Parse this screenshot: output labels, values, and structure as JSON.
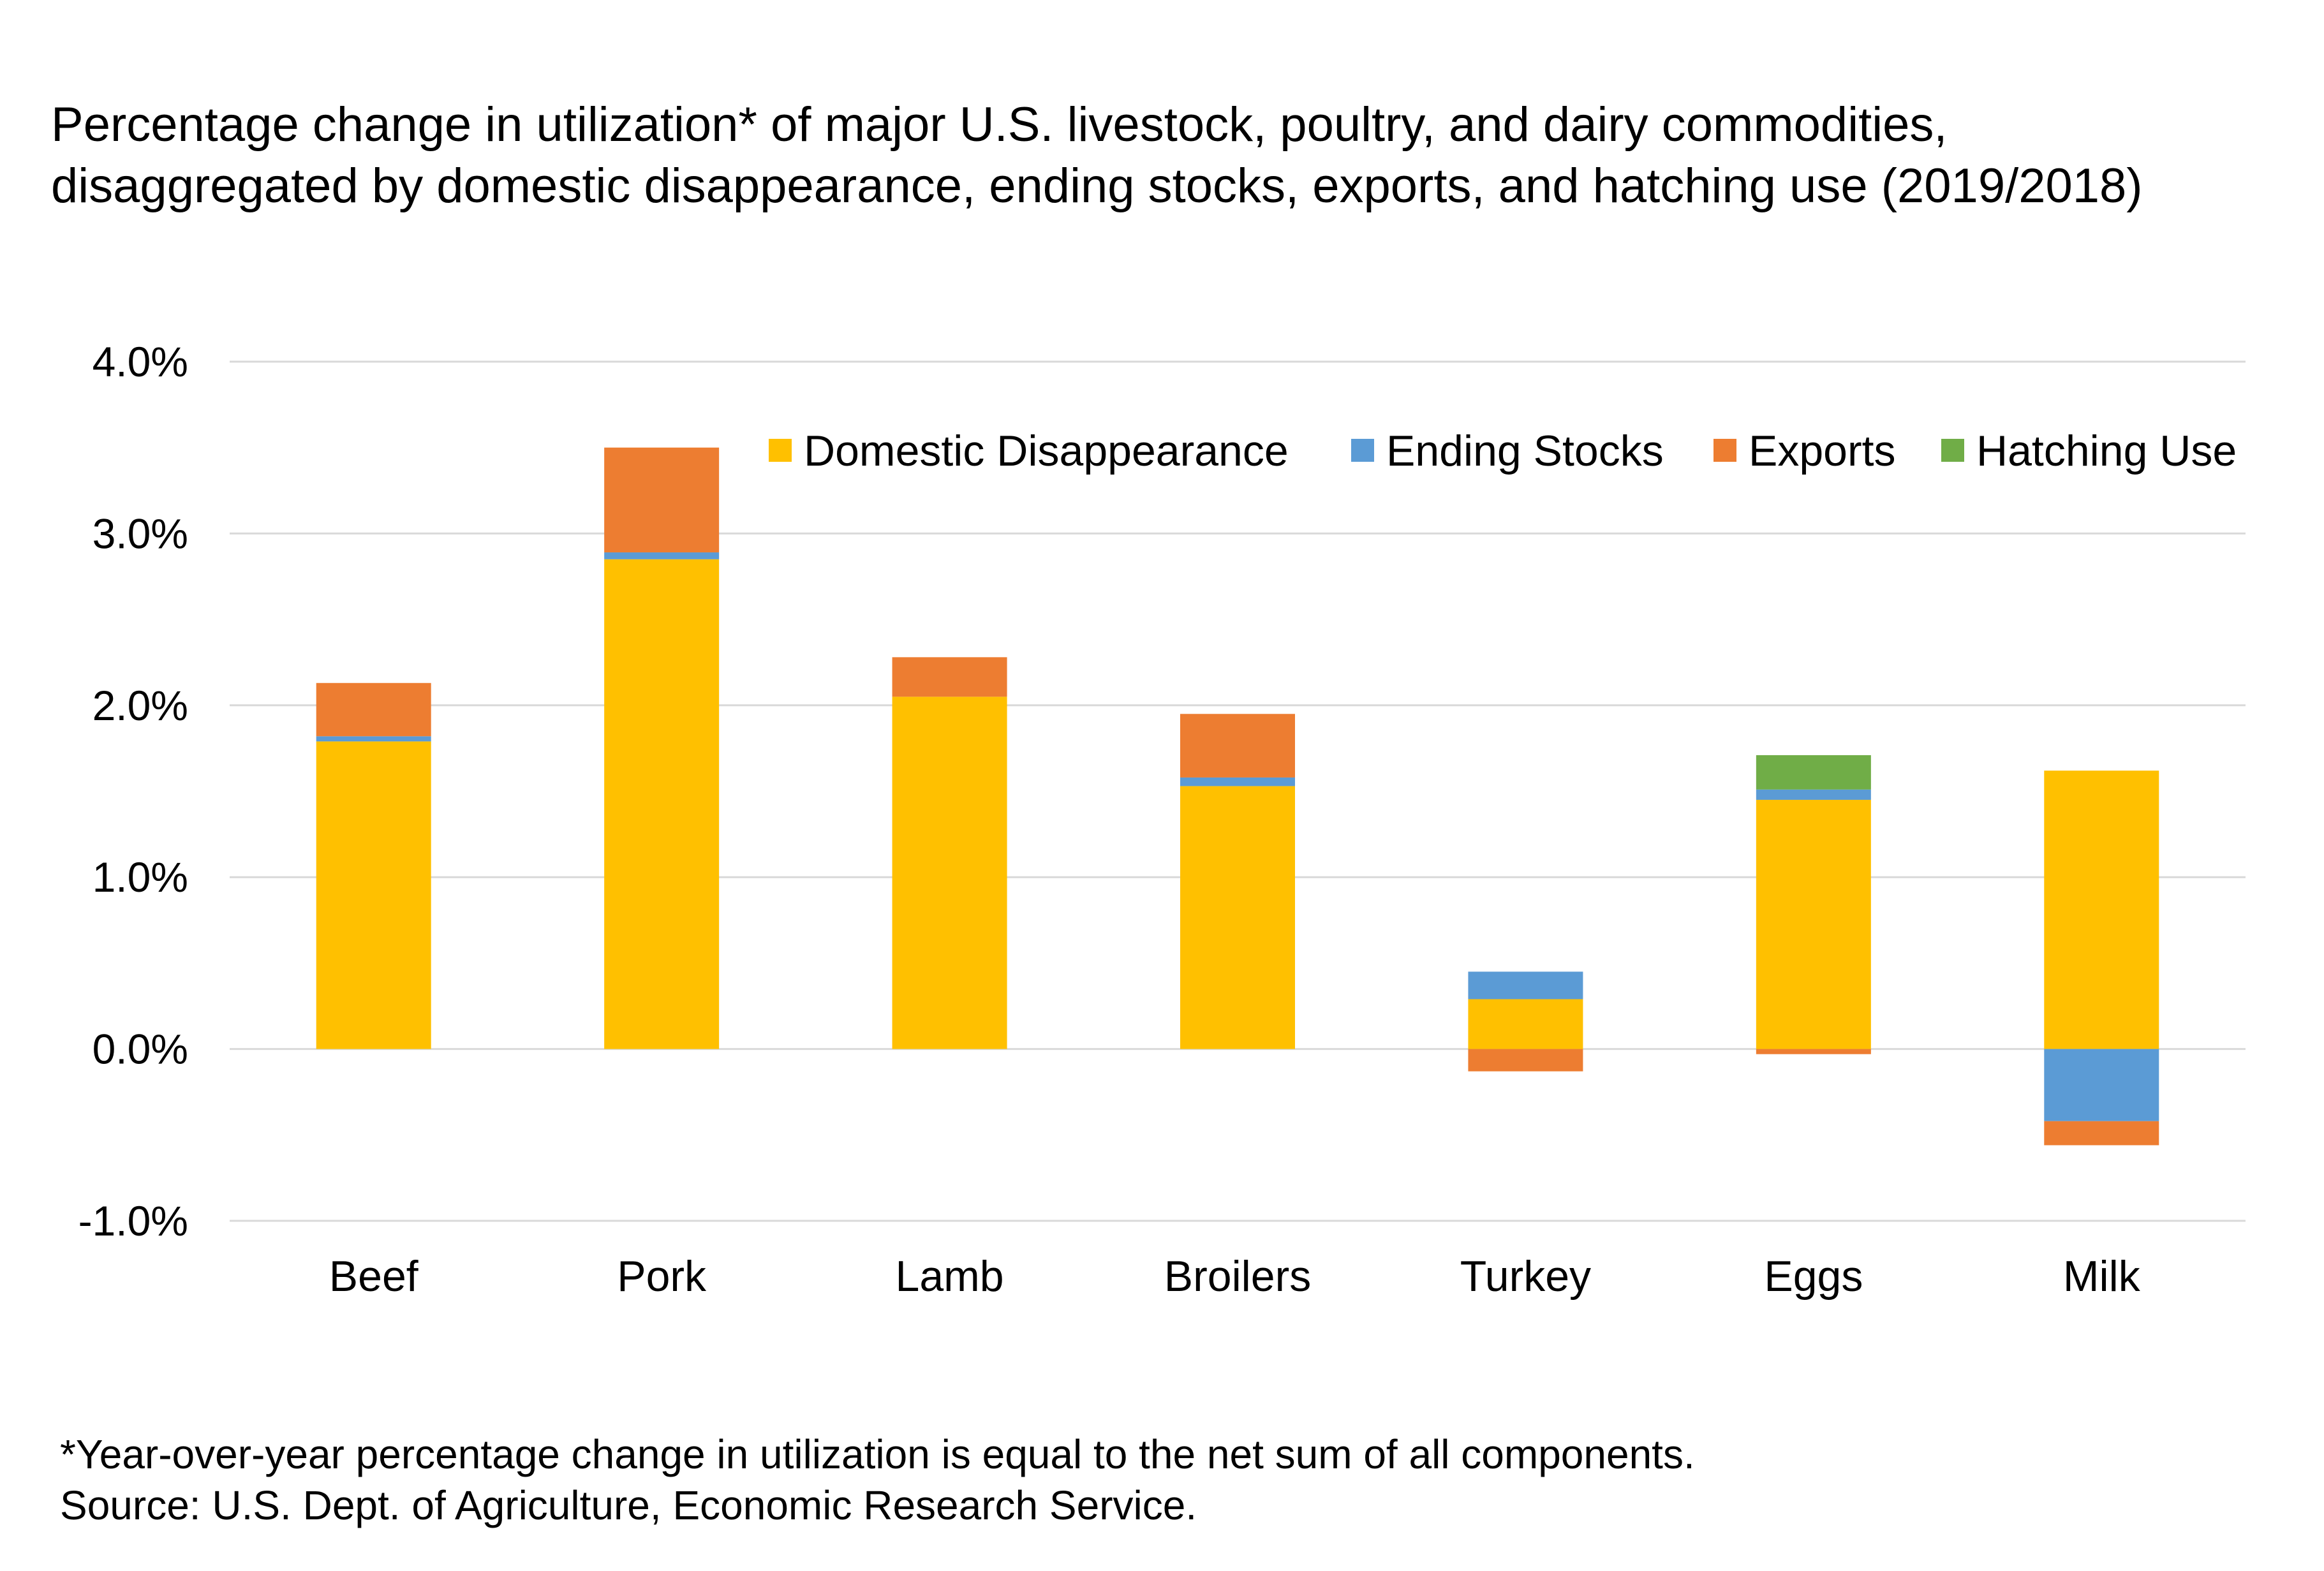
{
  "chart_data": {
    "type": "bar",
    "stacked": true,
    "title": "Percentage change in utilization* of major U.S. livestock, poultry, and dairy commodities, disaggregated by domestic disappearance, ending stocks, exports, and hatching use (2019/2018)",
    "title_lines": [
      "Percentage change in utilization* of major U.S. livestock, poultry, and dairy commodities,",
      "disaggregated by domestic disappearance, ending stocks, exports, and hatching use (2019/2018)"
    ],
    "xlabel": "",
    "ylabel": "",
    "categories": [
      "Beef",
      "Pork",
      "Lamb",
      "Broilers",
      "Turkey",
      "Eggs",
      "Milk"
    ],
    "ylim": [
      -1.0,
      4.0
    ],
    "yticks": [
      -1.0,
      0.0,
      1.0,
      2.0,
      3.0,
      4.0
    ],
    "ytick_labels": [
      "-1.0%",
      "0.0%",
      "1.0%",
      "2.0%",
      "3.0%",
      "4.0%"
    ],
    "grid": true,
    "legend_position": "top-right",
    "series": [
      {
        "name": "Domestic Disappearance",
        "color": "#FFC000",
        "values": [
          1.79,
          2.85,
          2.05,
          1.53,
          0.29,
          1.45,
          1.62
        ]
      },
      {
        "name": "Ending Stocks",
        "color": "#5B9BD5",
        "values": [
          0.03,
          0.04,
          0.0,
          0.05,
          0.16,
          0.06,
          -0.42
        ]
      },
      {
        "name": "Exports",
        "color": "#ED7D31",
        "values": [
          0.31,
          0.61,
          0.23,
          0.37,
          -0.13,
          -0.03,
          -0.14
        ]
      },
      {
        "name": "Hatching Use",
        "color": "#70AD47",
        "values": [
          0.0,
          0.0,
          0.0,
          0.0,
          0.0,
          0.2,
          0.0
        ]
      }
    ]
  },
  "footnote": {
    "line1": "*Year-over-year percentage change in utilization is equal to the net sum of all components.",
    "line2": "Source: U.S. Dept. of Agriculture, Economic Research Service."
  }
}
